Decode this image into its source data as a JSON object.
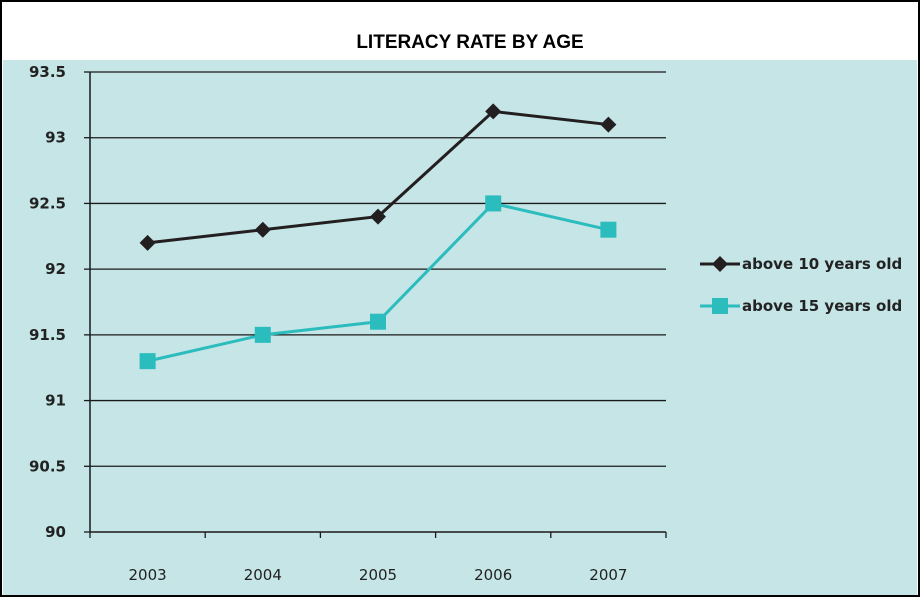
{
  "colors": {
    "background": "#c5e5e6",
    "grid": "#1a1a1a",
    "border": "#000000"
  },
  "chart_data": {
    "type": "line",
    "title": "LITERACY RATE BY AGE",
    "xlabel": "",
    "ylabel": "",
    "categories": [
      "2003",
      "2004",
      "2005",
      "2006",
      "2007"
    ],
    "ylim": [
      90,
      93.5
    ],
    "yticks": [
      "90",
      "90.5",
      "91",
      "91.5",
      "92",
      "92.5",
      "93",
      "93.5"
    ],
    "grid": true,
    "legend": "right",
    "series": [
      {
        "name": "above 10 years old",
        "values": [
          92.2,
          92.3,
          92.4,
          93.2,
          93.1
        ],
        "color": "#231f20",
        "marker": "diamond"
      },
      {
        "name": "above 15 years old",
        "values": [
          91.3,
          91.5,
          91.6,
          92.5,
          92.3
        ],
        "color": "#2bbcbd",
        "marker": "square"
      }
    ]
  }
}
